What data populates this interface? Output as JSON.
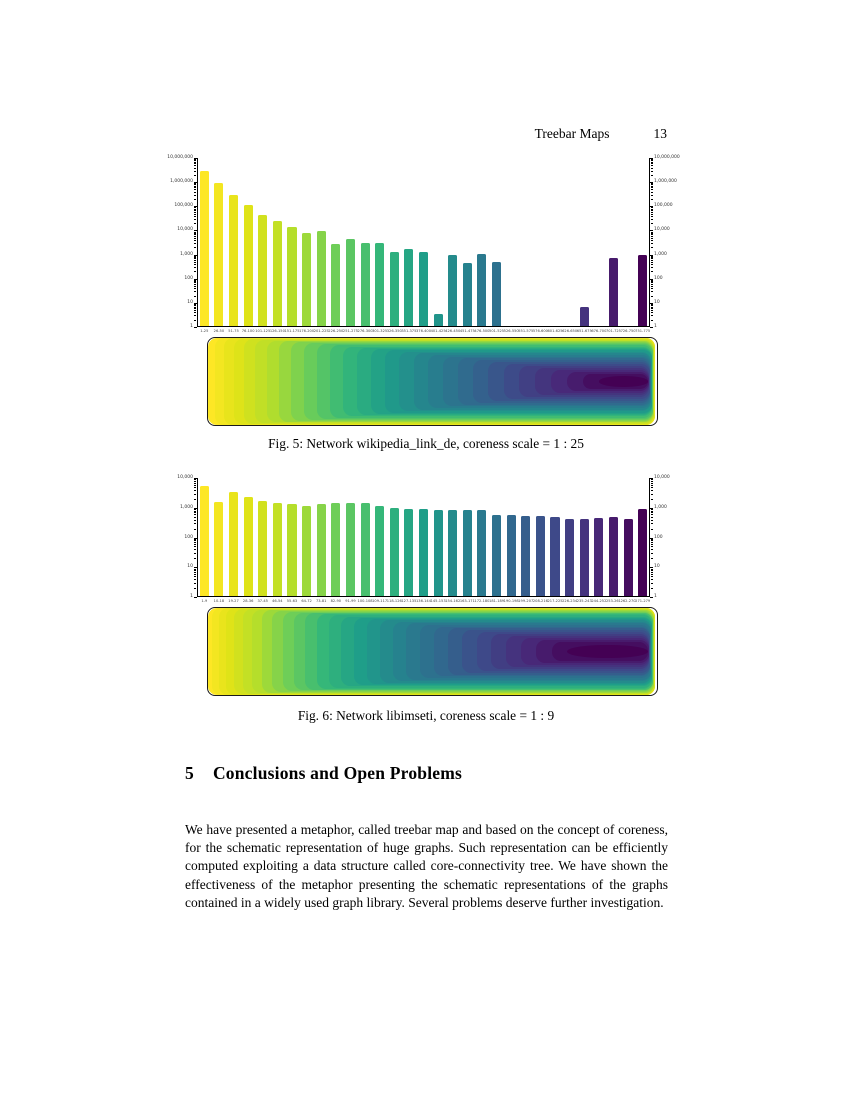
{
  "header": {
    "title": "Treebar Maps",
    "page_number": "13"
  },
  "figures": [
    {
      "caption": "Fig. 5: Network wikipedia_link_de, coreness scale = 1 : 25",
      "network": "wikipedia_link_de",
      "coreness_scale": "1 : 25",
      "treebar": {
        "layers": 30,
        "h_spread": 0.87,
        "h_exp": 1.2,
        "v_spread": 0.44,
        "v_exp": 1.7
      }
    },
    {
      "caption": "Fig. 6: Network libimseti, coreness scale = 1 : 9",
      "network": "libimseti",
      "coreness_scale": "1 : 9",
      "treebar": {
        "layers": 31,
        "h_spread": 0.8,
        "h_exp": 1.3,
        "v_spread": 0.42,
        "v_exp": 1.9
      }
    }
  ],
  "chart_data": [
    {
      "type": "bar",
      "title": "",
      "xlabel": "",
      "ylabel": "",
      "yscale": "log",
      "ylim": [
        1,
        10000000
      ],
      "ytick_labels": [
        "10,000,000",
        "1,000,000",
        "100,000",
        "10,000",
        "1,000",
        "100",
        "10",
        "1"
      ],
      "grid": false,
      "legend": "none",
      "categories": [
        "1-25",
        "26-50",
        "51-75",
        "76-100",
        "101-125",
        "126-150",
        "151-175",
        "176-200",
        "201-225",
        "226-250",
        "251-275",
        "276-300",
        "301-325",
        "326-350",
        "351-375",
        "376-400",
        "401-425",
        "426-450",
        "451-475",
        "476-500",
        "501-525",
        "526-550",
        "551-575",
        "576-600",
        "601-625",
        "626-650",
        "651-675",
        "676-700",
        "701-725",
        "726-750",
        "751-775"
      ],
      "values": [
        2700000,
        800000,
        280000,
        100000,
        40000,
        22000,
        13000,
        7200,
        8500,
        2600,
        4000,
        2700,
        2700,
        1150,
        1600,
        1150,
        3,
        850,
        400,
        1000,
        460,
        0,
        0,
        0,
        0,
        0,
        6,
        0,
        640,
        0,
        900
      ]
    },
    {
      "type": "bar",
      "title": "",
      "xlabel": "",
      "ylabel": "",
      "yscale": "log",
      "ylim": [
        1,
        10000
      ],
      "ytick_labels": [
        "10,000",
        "1,000",
        "100",
        "10",
        "1"
      ],
      "grid": false,
      "legend": "none",
      "categories": [
        "1-9",
        "10-18",
        "19-27",
        "28-36",
        "37-45",
        "46-54",
        "55-63",
        "64-72",
        "73-81",
        "82-90",
        "91-99",
        "100-108",
        "109-117",
        "118-126",
        "127-135",
        "136-144",
        "145-153",
        "154-162",
        "163-171",
        "172-180",
        "181-189",
        "190-198",
        "199-207",
        "208-216",
        "217-225",
        "226-234",
        "235-243",
        "244-252",
        "253-261",
        "262-270",
        "271-279"
      ],
      "values": [
        5100,
        1500,
        3100,
        2200,
        1600,
        1350,
        1200,
        1100,
        1250,
        1300,
        1350,
        1300,
        1100,
        900,
        820,
        820,
        780,
        780,
        780,
        770,
        540,
        540,
        490,
        480,
        440,
        400,
        400,
        420,
        440,
        390,
        860
      ]
    }
  ],
  "section": {
    "number": "5",
    "title": "Conclusions and Open Problems"
  },
  "paragraph": "We have presented a metaphor, called treebar map and based on the concept of coreness, for the schematic representation of huge graphs. Such representation can be efficiently computed exploiting a data structure called core-connectivity tree. We have shown the effectiveness of the metaphor presenting the schematic representations of the graphs contained in a widely used graph library. Several problems deserve further investigation.",
  "colors": {
    "viridis_stops": [
      "#440154",
      "#482878",
      "#3e4989",
      "#31688e",
      "#26828e",
      "#1f9e89",
      "#35b779",
      "#6ece58",
      "#b5de2b",
      "#dfe318",
      "#fde725"
    ],
    "axis": "#000000",
    "page_background": "#ffffff"
  }
}
